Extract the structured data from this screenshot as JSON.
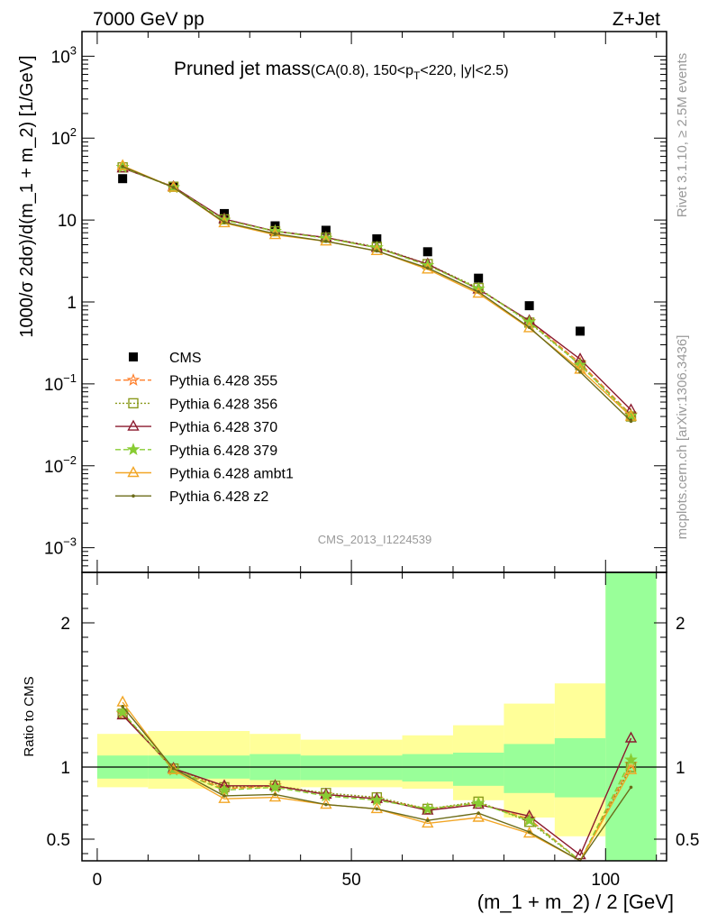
{
  "header": {
    "left": "7000 GeV pp",
    "right": "Z+Jet"
  },
  "side_text": {
    "rivet": "Rivet 3.1.10, ≥ 2.5M events",
    "mcplots": "mcplots.cern.ch [arXiv:1306.3436]"
  },
  "analysis_id": "CMS_2013_I1224539",
  "chart_data": [
    {
      "type": "scatter",
      "title": "Pruned jet mass",
      "subtitle_prefix": "(CA(0.8), 150<p",
      "subtitle_sub": "T",
      "subtitle_suffix": "<220, |y|<2.5)",
      "ylabel": "1000/σ 2dσ)/d(m_1 + m_2) [1/GeV]",
      "yscale": "log",
      "ylim": [
        0.0005,
        2000
      ],
      "xlim": [
        -3,
        112
      ],
      "y_tick_labels": [
        {
          "base": "10",
          "exp": "−3",
          "v": 0.001
        },
        {
          "base": "10",
          "exp": "−2",
          "v": 0.01
        },
        {
          "base": "10",
          "exp": "−1",
          "v": 0.1
        },
        {
          "base": "1",
          "exp": "",
          "v": 1
        },
        {
          "base": "10",
          "exp": "",
          "v": 10
        },
        {
          "base": "10",
          "exp": "2",
          "v": 100
        },
        {
          "base": "10",
          "exp": "3",
          "v": 1000
        }
      ],
      "legend_position": "bottom-left",
      "x": [
        5,
        15,
        25,
        35,
        45,
        55,
        65,
        75,
        85,
        95,
        105
      ],
      "series": [
        {
          "name": "CMS",
          "color": "#000000",
          "marker": "filled-square",
          "line": "none",
          "values": [
            32,
            25.5,
            12,
            8.5,
            7.5,
            5.9,
            4.1,
            1.95,
            0.9,
            0.44,
            0.04
          ]
        },
        {
          "name": "Pythia 6.428 355",
          "color": "#ff7f2a",
          "marker": "open-star",
          "line": "dashed",
          "values": [
            44,
            25,
            10,
            7.3,
            6.0,
            4.6,
            2.8,
            1.45,
            0.58,
            0.18,
            0.042
          ]
        },
        {
          "name": "Pythia 6.428 356",
          "color": "#8a9a1c",
          "marker": "open-square",
          "line": "dotted",
          "values": [
            44,
            25.5,
            10.2,
            7.3,
            6.1,
            4.7,
            2.9,
            1.48,
            0.56,
            0.17,
            0.04
          ]
        },
        {
          "name": "Pythia 6.428 370",
          "color": "#8b1a2e",
          "marker": "open-triangle",
          "line": "solid",
          "values": [
            43,
            25.5,
            10.3,
            7.3,
            6.1,
            4.6,
            2.9,
            1.43,
            0.59,
            0.2,
            0.048
          ]
        },
        {
          "name": "Pythia 6.428 379",
          "color": "#88cc33",
          "marker": "star",
          "line": "dashed",
          "values": [
            44,
            25,
            10,
            7.3,
            6.0,
            4.6,
            2.8,
            1.45,
            0.57,
            0.17,
            0.041
          ]
        },
        {
          "name": "Pythia 6.428 ambt1",
          "color": "#f2a626",
          "marker": "open-triangle",
          "line": "solid",
          "values": [
            46,
            25,
            9.2,
            6.6,
            5.5,
            4.2,
            2.5,
            1.27,
            0.48,
            0.15,
            0.04
          ]
        },
        {
          "name": "Pythia 6.428 z2",
          "color": "#6b6b18",
          "marker": "dot",
          "line": "solid",
          "values": [
            45,
            25,
            9.4,
            6.8,
            5.5,
            4.2,
            2.6,
            1.33,
            0.49,
            0.14,
            0.035
          ]
        }
      ]
    },
    {
      "type": "scatter",
      "xlabel": "(m_1 + m_2) / 2 [GeV]",
      "ylabel": "Ratio to CMS",
      "ylim": [
        0.35,
        2.35
      ],
      "xlim": [
        -3,
        112
      ],
      "x_ticks": [
        0,
        50,
        100
      ],
      "y_ticks": [
        0.5,
        1,
        2
      ],
      "reference_line": 1,
      "bands": [
        {
          "xmin": 0,
          "xmax": 10,
          "inner": [
            0.92,
            1.08
          ],
          "outer": [
            0.86,
            1.23
          ]
        },
        {
          "xmin": 10,
          "xmax": 30,
          "inner": [
            0.92,
            1.08
          ],
          "outer": [
            0.85,
            1.25
          ]
        },
        {
          "xmin": 30,
          "xmax": 40,
          "inner": [
            0.91,
            1.09
          ],
          "outer": [
            0.85,
            1.23
          ]
        },
        {
          "xmin": 40,
          "xmax": 60,
          "inner": [
            0.91,
            1.08
          ],
          "outer": [
            0.86,
            1.19
          ]
        },
        {
          "xmin": 60,
          "xmax": 70,
          "inner": [
            0.9,
            1.09
          ],
          "outer": [
            0.85,
            1.22
          ]
        },
        {
          "xmin": 70,
          "xmax": 80,
          "inner": [
            0.87,
            1.1
          ],
          "outer": [
            0.77,
            1.29
          ]
        },
        {
          "xmin": 80,
          "xmax": 90,
          "inner": [
            0.82,
            1.16
          ],
          "outer": [
            0.65,
            1.44
          ]
        },
        {
          "xmin": 90,
          "xmax": 100,
          "inner": [
            0.79,
            1.2
          ],
          "outer": [
            0.52,
            1.58
          ]
        },
        {
          "xmin": 100,
          "xmax": 110,
          "inner": [
            0.35,
            2.35
          ],
          "outer": [
            0.35,
            2.35
          ]
        }
      ],
      "series": [
        {
          "name": "Pythia 6.428 355",
          "values": [
            1.37,
            0.98,
            0.85,
            0.87,
            0.81,
            0.78,
            0.71,
            0.75,
            0.64,
            0.33,
            1.02
          ]
        },
        {
          "name": "Pythia 6.428 356",
          "values": [
            1.37,
            0.99,
            0.86,
            0.87,
            0.82,
            0.79,
            0.71,
            0.76,
            0.62,
            0.32,
            1.0
          ]
        },
        {
          "name": "Pythia 6.428 370",
          "values": [
            1.36,
            0.99,
            0.87,
            0.87,
            0.81,
            0.78,
            0.7,
            0.74,
            0.66,
            0.39,
            1.2
          ]
        },
        {
          "name": "Pythia 6.428 379",
          "values": [
            1.38,
            0.98,
            0.84,
            0.86,
            0.8,
            0.77,
            0.71,
            0.75,
            0.63,
            0.3,
            1.05
          ]
        },
        {
          "name": "Pythia 6.428 ambt1",
          "values": [
            1.45,
            0.98,
            0.78,
            0.79,
            0.74,
            0.71,
            0.61,
            0.65,
            0.54,
            0.25,
            0.98
          ]
        },
        {
          "name": "Pythia 6.428 z2",
          "values": [
            1.42,
            0.99,
            0.8,
            0.81,
            0.74,
            0.71,
            0.63,
            0.68,
            0.55,
            0.31,
            0.86
          ]
        }
      ]
    }
  ]
}
